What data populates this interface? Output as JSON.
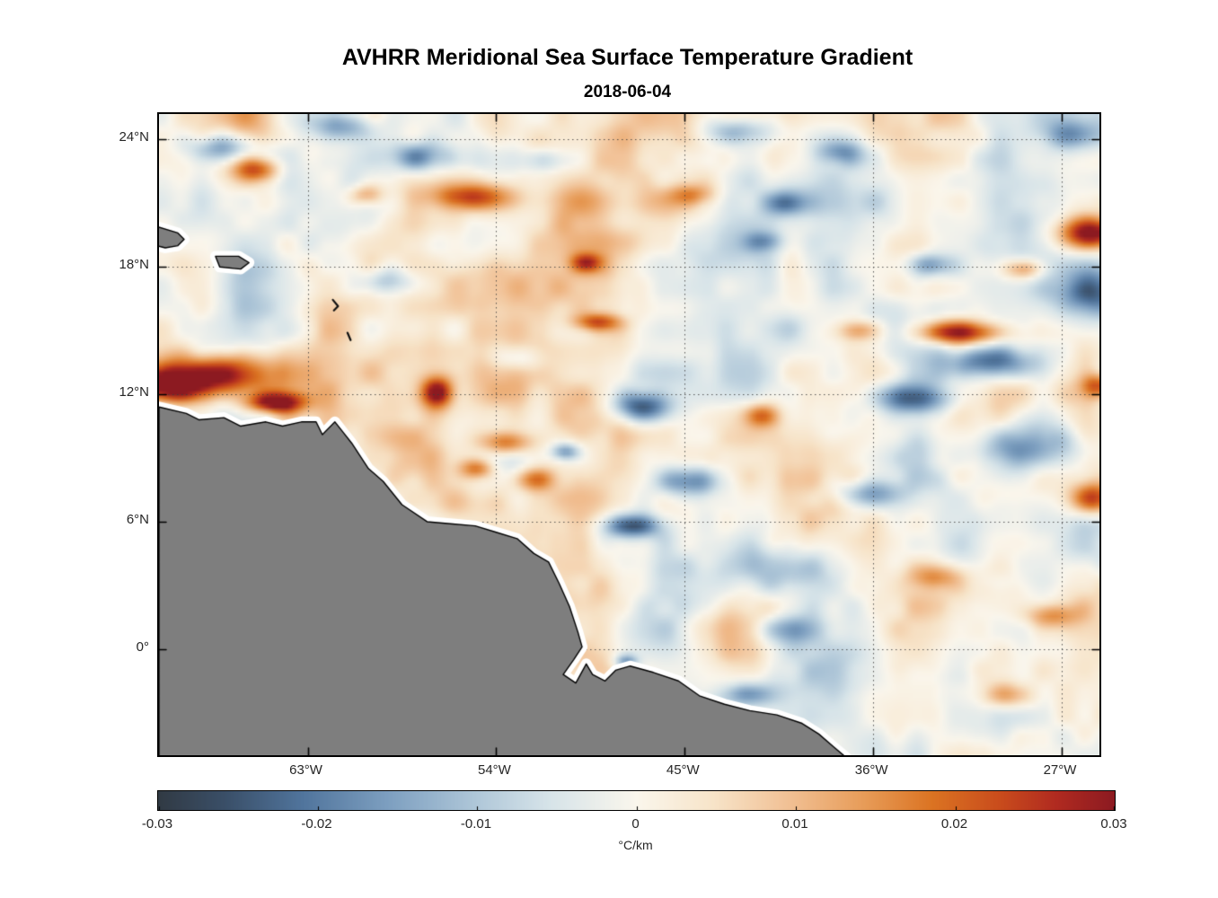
{
  "page": {
    "background": "#ffffff"
  },
  "chart_data": {
    "type": "heatmap",
    "title": "AVHRR Meridional Sea Surface Temperature Gradient",
    "subtitle": "2018-06-04",
    "x_axis": {
      "range_lon": [
        -70.1,
        -25.2
      ],
      "ticks": [
        {
          "lon": -63,
          "label": "63°W"
        },
        {
          "lon": -54,
          "label": "54°W"
        },
        {
          "lon": -45,
          "label": "45°W"
        },
        {
          "lon": -36,
          "label": "36°W"
        },
        {
          "lon": -27,
          "label": "27°W"
        }
      ]
    },
    "y_axis": {
      "range_lat": [
        -5.0,
        25.2
      ],
      "ticks": [
        {
          "lat": 24,
          "label": "24°N"
        },
        {
          "lat": 18,
          "label": "18°N"
        },
        {
          "lat": 12,
          "label": "12°N"
        },
        {
          "lat": 6,
          "label": "6°N"
        },
        {
          "lat": 0,
          "label": "0°"
        }
      ]
    },
    "grid": {
      "visible": true,
      "style": "dotted",
      "color": "rgba(60,60,60,0.85)"
    },
    "colorbar": {
      "orientation": "horizontal",
      "range": [
        -0.03,
        0.03
      ],
      "unit_label": "°C/km",
      "ticks": [
        {
          "value": -0.03,
          "label": "-0.03"
        },
        {
          "value": -0.02,
          "label": "-0.02"
        },
        {
          "value": -0.01,
          "label": "-0.01"
        },
        {
          "value": 0,
          "label": "0"
        },
        {
          "value": 0.01,
          "label": "0.01"
        },
        {
          "value": 0.02,
          "label": "0.02"
        },
        {
          "value": 0.03,
          "label": "0.03"
        }
      ]
    },
    "colormap": {
      "name": "diverging slate-blue / white / red (balance-like)",
      "stops": [
        [
          0.0,
          "#313a44"
        ],
        [
          0.07,
          "#3a4f68"
        ],
        [
          0.15,
          "#50749c"
        ],
        [
          0.24,
          "#7d9fc0"
        ],
        [
          0.33,
          "#aec6d8"
        ],
        [
          0.41,
          "#d7e4e9"
        ],
        [
          0.5,
          "#faf6ec"
        ],
        [
          0.58,
          "#f7e4c9"
        ],
        [
          0.66,
          "#f1c094"
        ],
        [
          0.74,
          "#e79b57"
        ],
        [
          0.81,
          "#db7322"
        ],
        [
          0.88,
          "#c94c1c"
        ],
        [
          0.94,
          "#b02a20"
        ],
        [
          1.0,
          "#8c1a21"
        ]
      ]
    },
    "field": {
      "units": "°C/km",
      "value_range": [
        -0.03,
        0.03
      ],
      "background_bias": 0.001,
      "noise_amplitudes": [
        0.0075,
        0.005,
        0.003
      ],
      "feature_fields": [
        "lon",
        "lat",
        "value",
        "sigma_lon_deg",
        "sigma_lat_deg"
      ],
      "features": [
        [
          -66.9,
          12.9,
          0.035,
          2.0,
          0.75
        ],
        [
          -69.6,
          12.4,
          0.028,
          1.2,
          0.6
        ],
        [
          -64.6,
          11.6,
          0.032,
          1.0,
          0.35
        ],
        [
          -65.4,
          22.6,
          0.018,
          0.8,
          0.4
        ],
        [
          -60.2,
          21.4,
          0.014,
          0.6,
          0.35
        ],
        [
          -55.3,
          21.3,
          0.022,
          1.4,
          0.45
        ],
        [
          -49.7,
          18.2,
          0.018,
          0.5,
          0.3
        ],
        [
          -56.8,
          12.1,
          0.028,
          0.55,
          0.5
        ],
        [
          -53.6,
          9.7,
          0.022,
          0.9,
          0.4
        ],
        [
          -54.9,
          8.5,
          0.02,
          0.6,
          0.35
        ],
        [
          -52.1,
          8.0,
          0.018,
          0.7,
          0.4
        ],
        [
          -49.2,
          15.4,
          0.02,
          0.8,
          0.3
        ],
        [
          -44.6,
          21.4,
          0.012,
          0.8,
          0.35
        ],
        [
          -41.3,
          11.0,
          0.018,
          0.6,
          0.4
        ],
        [
          -36.7,
          15.0,
          0.014,
          0.7,
          0.35
        ],
        [
          -31.8,
          14.9,
          0.028,
          1.5,
          0.4
        ],
        [
          -28.8,
          17.9,
          0.018,
          0.7,
          0.35
        ],
        [
          -25.6,
          19.6,
          0.036,
          1.1,
          0.55
        ],
        [
          -25.2,
          12.4,
          0.02,
          0.6,
          0.4
        ],
        [
          -25.6,
          7.1,
          0.024,
          0.7,
          0.55
        ],
        [
          -27.5,
          1.6,
          0.015,
          0.9,
          0.4
        ],
        [
          -33.0,
          3.4,
          0.012,
          0.9,
          0.4
        ],
        [
          -29.5,
          -2.2,
          0.014,
          1.0,
          0.45
        ],
        [
          -66.9,
          23.6,
          -0.02,
          1.2,
          0.5
        ],
        [
          -61.3,
          24.7,
          -0.018,
          1.2,
          0.5
        ],
        [
          -57.5,
          23.2,
          -0.02,
          1.2,
          0.5
        ],
        [
          -51.5,
          23.0,
          -0.012,
          0.9,
          0.45
        ],
        [
          -42.4,
          24.4,
          -0.018,
          1.2,
          0.5
        ],
        [
          -37.6,
          23.4,
          -0.014,
          0.8,
          0.4
        ],
        [
          -26.5,
          24.2,
          -0.014,
          1.0,
          0.5
        ],
        [
          -40.3,
          21.0,
          -0.014,
          0.7,
          0.4
        ],
        [
          -41.2,
          19.2,
          -0.013,
          0.7,
          0.35
        ],
        [
          -33.2,
          18.1,
          -0.018,
          0.7,
          0.4
        ],
        [
          -25.6,
          16.8,
          -0.028,
          1.2,
          0.9
        ],
        [
          -30.3,
          13.5,
          -0.028,
          1.6,
          0.6
        ],
        [
          -34.0,
          11.8,
          -0.024,
          1.3,
          0.5
        ],
        [
          -59.2,
          17.3,
          -0.013,
          1.0,
          0.45
        ],
        [
          -53.0,
          13.7,
          -0.01,
          0.9,
          0.4
        ],
        [
          -47.1,
          11.4,
          -0.026,
          1.0,
          0.5
        ],
        [
          -50.7,
          9.3,
          -0.018,
          0.5,
          0.3
        ],
        [
          -44.9,
          7.9,
          -0.02,
          1.0,
          0.5
        ],
        [
          -47.6,
          5.8,
          -0.024,
          1.0,
          0.4
        ],
        [
          -36.2,
          7.3,
          -0.018,
          1.2,
          0.5
        ],
        [
          -28.6,
          9.5,
          -0.026,
          1.8,
          0.9
        ],
        [
          -40.2,
          3.6,
          -0.016,
          2.2,
          0.9
        ],
        [
          -40.0,
          0.9,
          -0.016,
          1.3,
          0.5
        ],
        [
          -42.0,
          -2.1,
          -0.018,
          0.9,
          0.4
        ],
        [
          -47.8,
          -0.6,
          -0.02,
          0.4,
          0.25
        ]
      ]
    },
    "land": {
      "fill": "#7e7e7e",
      "outline": "#000000",
      "coastal_halo": "#ffffff",
      "polygons": {
        "south_america": [
          [
            -70.1,
            11.4
          ],
          [
            -68.8,
            11.1
          ],
          [
            -68.2,
            10.8
          ],
          [
            -67.0,
            10.9
          ],
          [
            -66.2,
            10.5
          ],
          [
            -65.0,
            10.7
          ],
          [
            -64.2,
            10.5
          ],
          [
            -63.3,
            10.7
          ],
          [
            -62.6,
            10.7
          ],
          [
            -62.3,
            10.1
          ],
          [
            -61.7,
            10.7
          ],
          [
            -61.3,
            10.2
          ],
          [
            -60.9,
            9.7
          ],
          [
            -60.1,
            8.5
          ],
          [
            -59.4,
            7.9
          ],
          [
            -58.5,
            6.8
          ],
          [
            -57.3,
            6.0
          ],
          [
            -56.2,
            5.9
          ],
          [
            -55.0,
            5.8
          ],
          [
            -54.0,
            5.5
          ],
          [
            -53.0,
            5.2
          ],
          [
            -52.2,
            4.5
          ],
          [
            -51.5,
            4.1
          ],
          [
            -51.0,
            3.1
          ],
          [
            -50.5,
            2.0
          ],
          [
            -50.1,
            0.8
          ],
          [
            -49.9,
            0.1
          ],
          [
            -50.3,
            -0.5
          ],
          [
            -50.8,
            -1.2
          ],
          [
            -50.2,
            -1.6
          ],
          [
            -49.7,
            -0.7
          ],
          [
            -49.4,
            -1.2
          ],
          [
            -48.8,
            -1.5
          ],
          [
            -48.3,
            -1.0
          ],
          [
            -47.6,
            -0.8
          ],
          [
            -46.5,
            -1.1
          ],
          [
            -45.3,
            -1.5
          ],
          [
            -44.3,
            -2.2
          ],
          [
            -43.1,
            -2.6
          ],
          [
            -41.9,
            -2.9
          ],
          [
            -40.6,
            -3.1
          ],
          [
            -39.4,
            -3.5
          ],
          [
            -38.6,
            -4.0
          ],
          [
            -37.9,
            -4.6
          ],
          [
            -37.3,
            -5.1
          ],
          [
            -70.1,
            -5.1
          ]
        ],
        "hispaniola": [
          [
            -70.2,
            19.9
          ],
          [
            -69.2,
            19.6
          ],
          [
            -68.9,
            19.3
          ],
          [
            -69.2,
            19.0
          ],
          [
            -69.8,
            18.9
          ],
          [
            -70.2,
            19.0
          ]
        ],
        "puerto_rico": [
          [
            -67.4,
            18.5
          ],
          [
            -66.3,
            18.5
          ],
          [
            -65.8,
            18.2
          ],
          [
            -66.2,
            17.9
          ],
          [
            -67.2,
            18.0
          ]
        ]
      },
      "small_islands": [
        [
          [
            -61.8,
            16.45
          ],
          [
            -61.55,
            16.15
          ],
          [
            -61.75,
            15.95
          ]
        ],
        [
          [
            -61.1,
            14.9
          ],
          [
            -60.95,
            14.55
          ]
        ]
      ]
    }
  }
}
